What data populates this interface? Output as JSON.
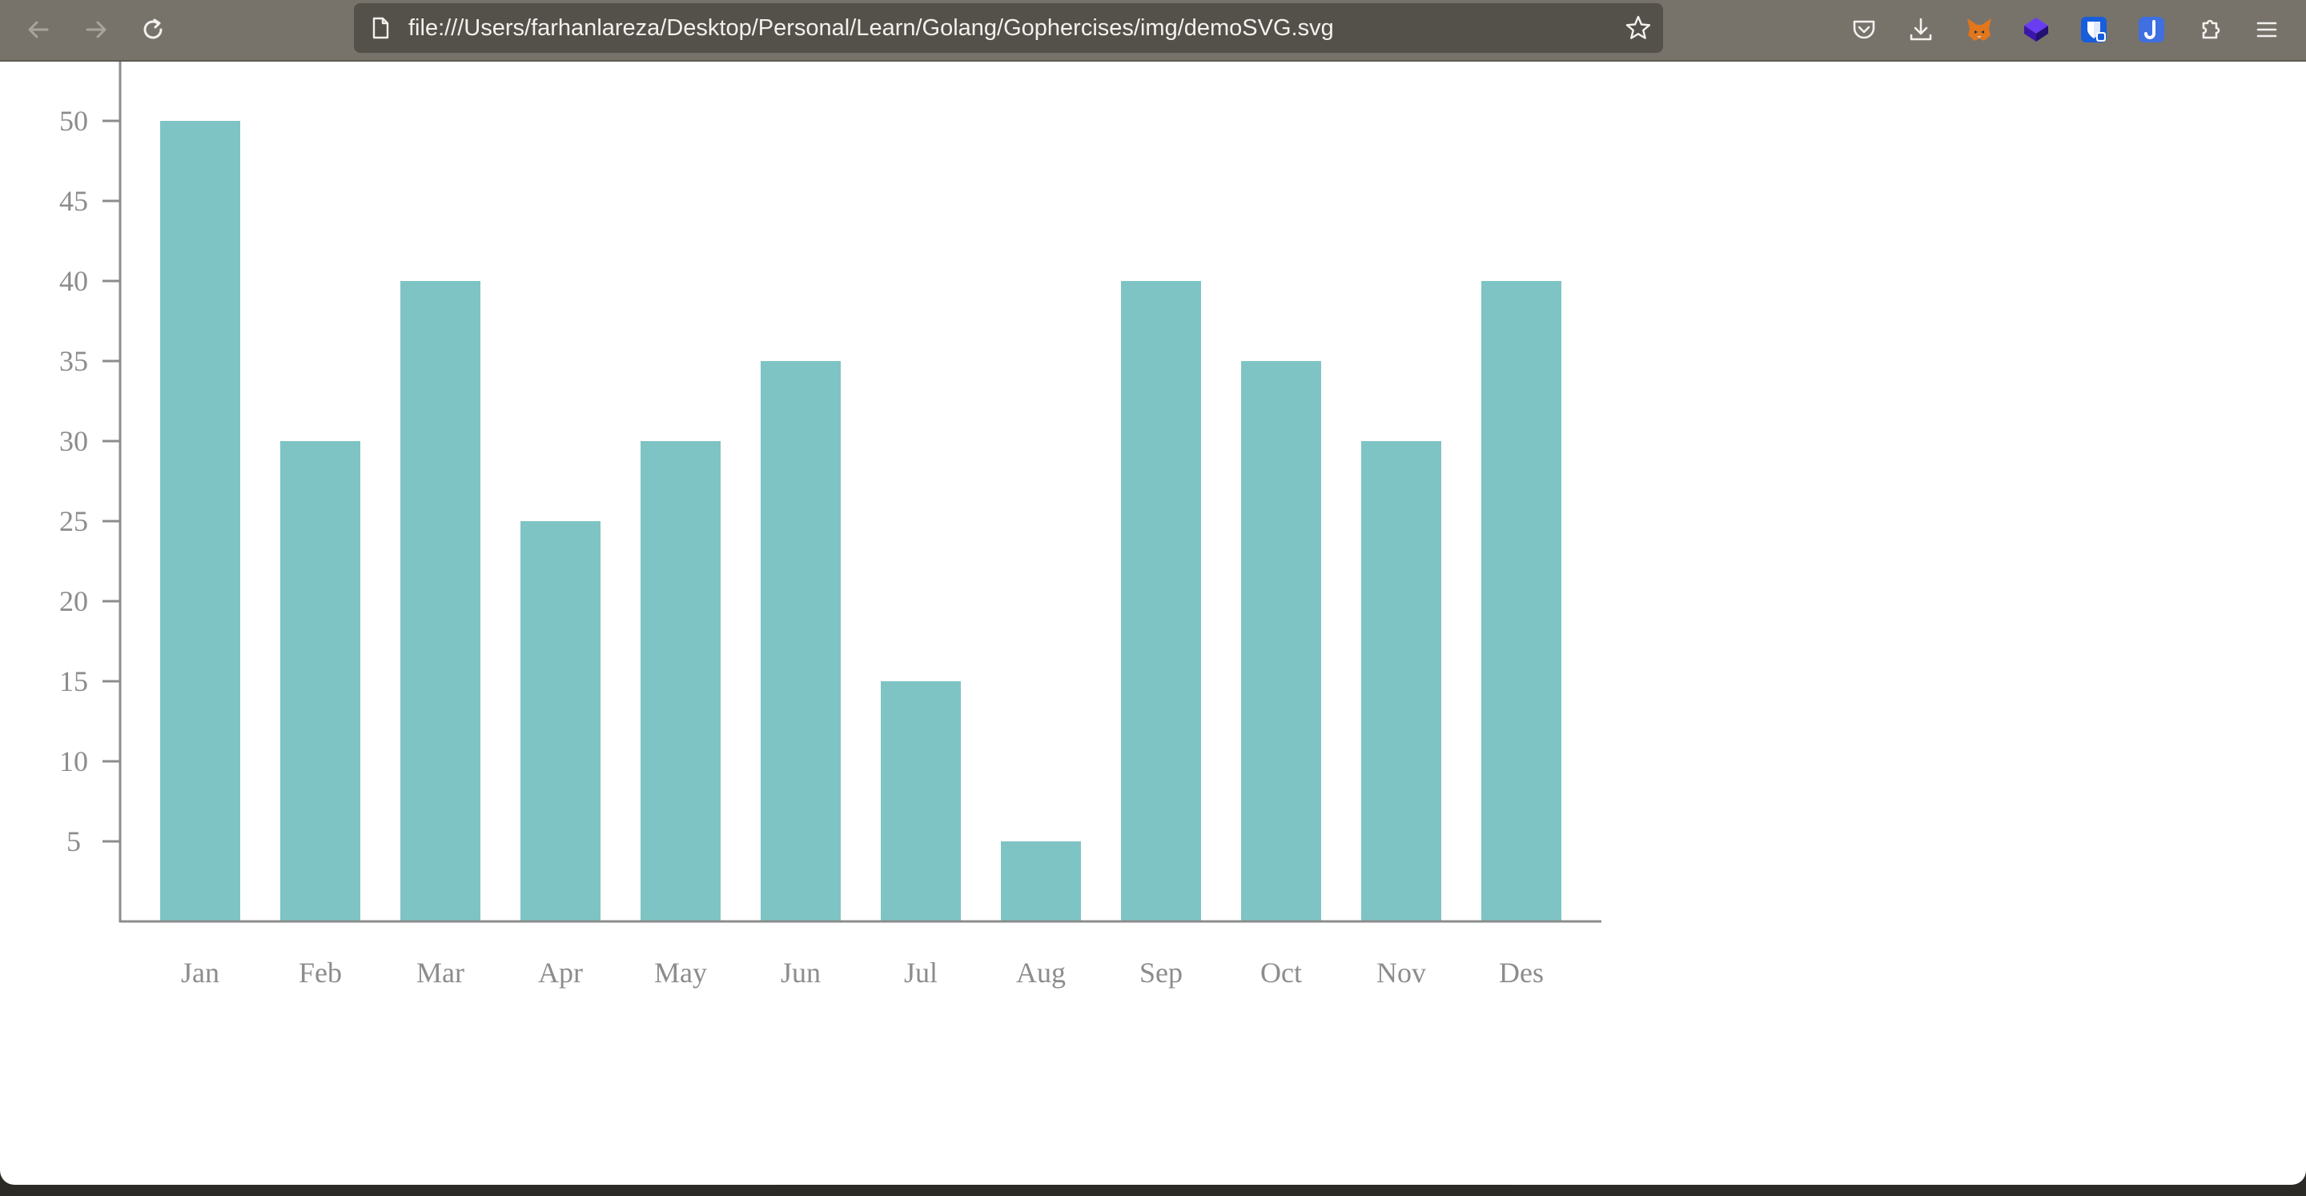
{
  "browser": {
    "url": "file:///Users/farhanlareza/Desktop/Personal/Learn/Golang/Gophercises/img/demoSVG.svg",
    "icons": {
      "back": "back-arrow-icon",
      "forward": "forward-arrow-icon",
      "reload": "reload-icon",
      "page": "page-icon",
      "bookmark": "star-icon",
      "pocket": "pocket-icon",
      "downloads": "download-icon",
      "metamask": "fox-extension-icon",
      "extension_blue": "cube-extension-icon",
      "bitwarden": "shield-extension-icon",
      "extension_j": "j-extension-icon",
      "extensions": "puzzle-icon",
      "menu": "hamburger-menu-icon"
    }
  },
  "chart_data": {
    "type": "bar",
    "categories": [
      "Jan",
      "Feb",
      "Mar",
      "Apr",
      "May",
      "Jun",
      "Jul",
      "Aug",
      "Sep",
      "Oct",
      "Nov",
      "Des"
    ],
    "values": [
      50,
      30,
      40,
      25,
      30,
      35,
      15,
      5,
      40,
      35,
      30,
      40
    ],
    "yticks": [
      5,
      10,
      15,
      20,
      25,
      30,
      35,
      40,
      45,
      50
    ],
    "ylim": [
      0,
      50
    ],
    "bar_color": "#7fc4c4",
    "axis_color": "#8c8c8c",
    "grid": false,
    "legend": "none"
  }
}
